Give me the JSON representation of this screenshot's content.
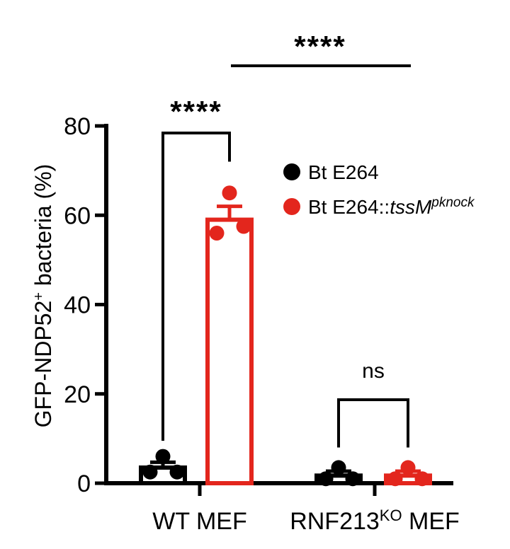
{
  "chart_data": {
    "type": "bar",
    "ylabel": "GFP-NDP52⁺ bacteria (%)",
    "ylabel_main": "GFP-NDP52",
    "ylabel_sup": "+",
    "ylabel_rest": " bacteria (%)",
    "ylim": [
      0,
      80
    ],
    "yticks": [
      0,
      20,
      40,
      60,
      80
    ],
    "grid": false,
    "legend_position": "right",
    "groups": [
      {
        "label": "WT MEF",
        "label_main": "WT MEF",
        "label_sup": "",
        "label_rest": ""
      },
      {
        "label": "RNF213KO MEF",
        "label_main": "RNF213",
        "label_sup": "KO",
        "label_rest": " MEF"
      }
    ],
    "series": [
      {
        "name": "Bt E264",
        "name_main": "Bt E264",
        "name_italic": "",
        "name_sup": "",
        "color": "#000000",
        "values": [
          3.5,
          1.7
        ],
        "errors": [
          1.2,
          1.0
        ],
        "points": [
          [
            6,
            2.5,
            2.5
          ],
          [
            3.5,
            1.0,
            1.0
          ]
        ]
      },
      {
        "name": "Bt E264::tssMpknock",
        "name_main": "Bt E264::",
        "name_italic": "tssM",
        "name_sup": "pknock",
        "color": "#e3261d",
        "values": [
          59,
          1.7
        ],
        "errors": [
          3,
          1.0
        ],
        "points": [
          [
            65,
            57.5,
            56
          ],
          [
            3.5,
            1.0,
            1.0
          ]
        ]
      }
    ],
    "annotations": [
      {
        "text": "****",
        "type": "within-group",
        "group": 0
      },
      {
        "text": "ns",
        "type": "within-group",
        "group": 1
      },
      {
        "text": "****",
        "type": "between-groups",
        "series": 1
      }
    ]
  }
}
